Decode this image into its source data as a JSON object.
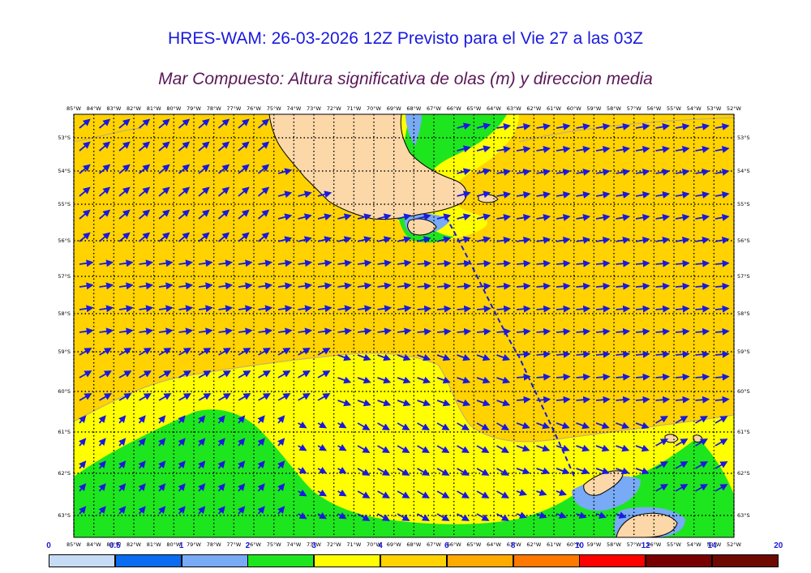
{
  "header": {
    "title": "HRES-WAM: 26-03-2026 12Z Previsto para el Vie 27 a las 03Z",
    "subtitle": "Mar Compuesto: Altura significativa de olas (m) y direccion media"
  },
  "map": {
    "lon_labels": [
      "85°W",
      "84°W",
      "83°W",
      "82°W",
      "81°W",
      "80°W",
      "79°W",
      "78°W",
      "77°W",
      "76°W",
      "75°W",
      "74°W",
      "73°W",
      "72°W",
      "71°W",
      "70°W",
      "69°W",
      "68°W",
      "67°W",
      "66°W",
      "65°W",
      "64°W",
      "63°W",
      "62°W",
      "61°W",
      "60°W",
      "59°W",
      "58°W",
      "57°W",
      "56°W",
      "55°W",
      "54°W",
      "53°W",
      "52°W"
    ],
    "lat_labels": [
      "53°S",
      "54°S",
      "55°S",
      "56°S",
      "57°S",
      "58°S",
      "59°S",
      "60°S",
      "61°S",
      "62°S",
      "63°S"
    ],
    "arrow_color": "#1a1adc",
    "gridline_color": "#000000"
  },
  "colorbar": {
    "labels": [
      "0",
      "0.5",
      "1",
      "2",
      "3",
      "4",
      "6",
      "8",
      "10",
      "12",
      "14",
      "20"
    ],
    "colors": [
      "#c6dcf6",
      "#0a6cf0",
      "#78aaf5",
      "#1ee61e",
      "#ffff00",
      "#ffd200",
      "#ffaa00",
      "#ff7800",
      "#ff0000",
      "#780000",
      "#6e0a00",
      "#333333"
    ]
  }
}
